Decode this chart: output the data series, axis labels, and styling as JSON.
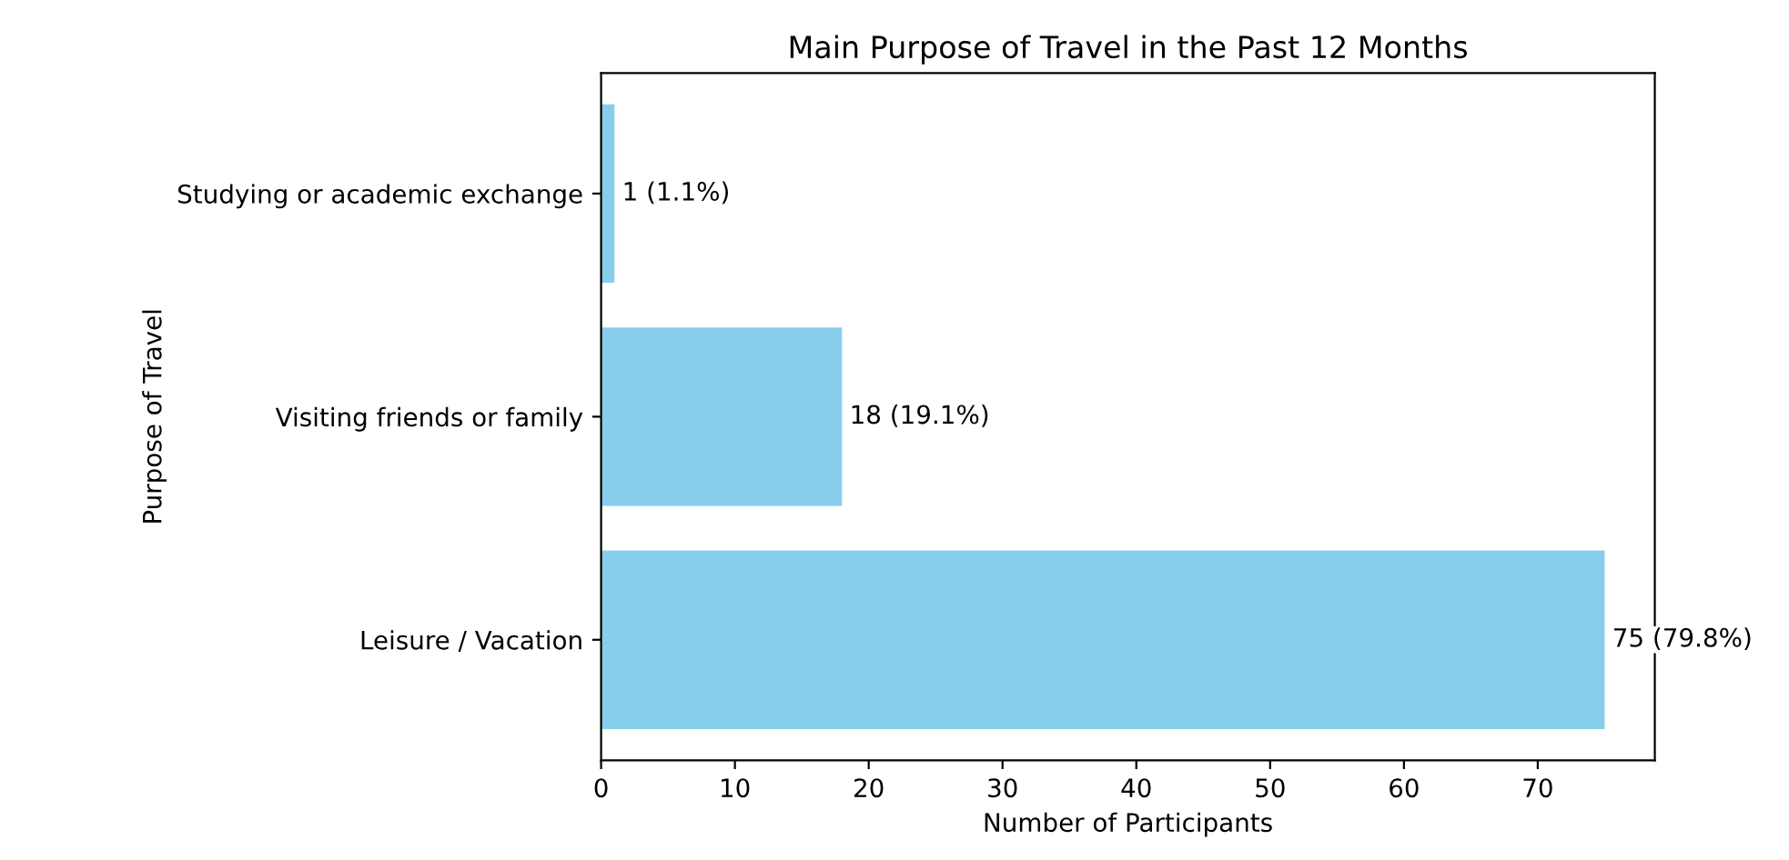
{
  "chart_data": {
    "type": "bar",
    "orientation": "horizontal",
    "title": "Main Purpose of Travel in the Past 12 Months",
    "xlabel": "Number of Participants",
    "ylabel": "Purpose of Travel",
    "categories": [
      "Studying or academic exchange",
      "Visiting friends or family",
      "Leisure / Vacation"
    ],
    "values": [
      1,
      18,
      75
    ],
    "value_labels": [
      "1 (1.1%)",
      "18 (19.1%)",
      "75 (79.8%)"
    ],
    "color": "#87ceeb",
    "xlim": [
      0,
      78.75
    ],
    "xticks": [
      0,
      10,
      20,
      30,
      40,
      50,
      60,
      70
    ],
    "grid": false
  }
}
